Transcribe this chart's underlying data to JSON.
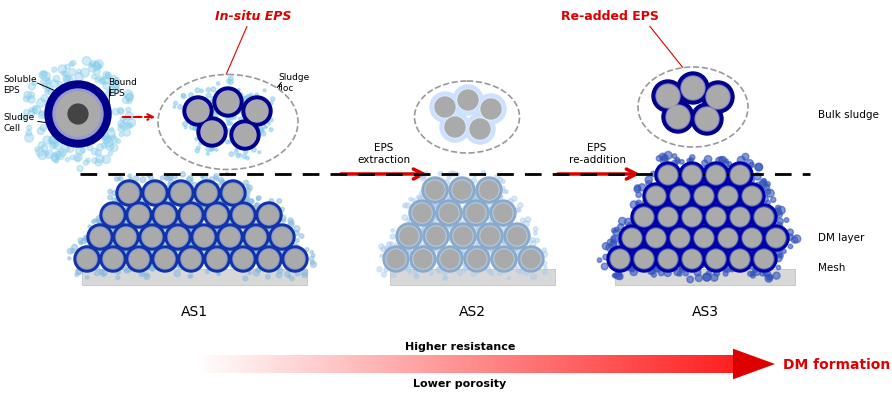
{
  "bg_color": "#ffffff",
  "insitu_eps_label": "In-situ EPS",
  "readded_eps_label": "Re-added EPS",
  "eps_extraction_label": "EPS\nextraction",
  "eps_readdition_label": "EPS\nre-addition",
  "as1_label": "AS1",
  "as2_label": "AS2",
  "as3_label": "AS3",
  "bulk_sludge_label": "Bulk sludge",
  "dm_layer_label": "DM layer",
  "mesh_label": "Mesh",
  "higher_resistance": "Higher resistance",
  "lower_porosity": "Lower porosity",
  "dm_formation": "DM formation",
  "soluble_eps": "Soluble\nEPS",
  "bound_eps": "Bound\nEPS",
  "sludge_floc": "Sludge\nfloc",
  "sludge_cell": "Sludge\nCell",
  "red_color": "#dd0000",
  "dark_blue": "#00008B",
  "light_blue": "#87CEEB",
  "gray_cell": "#999999"
}
